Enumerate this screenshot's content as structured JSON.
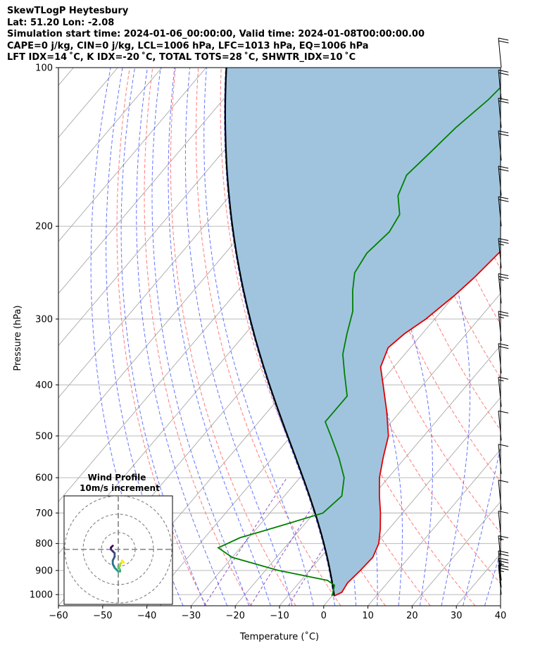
{
  "header": {
    "line1": "SkewTLogP Heytesbury",
    "line2": "Lat: 51.20   Lon: -2.08",
    "line3": "Simulation start time: 2024-01-06_00:00:00, Valid time: 2024-01-08T00:00:00.00",
    "line4": "CAPE=0 j/kg, CIN=0 j/kg, LCL=1006 hPa, LFC=1013 hPa, EQ=1006 hPa",
    "line5": "LFT IDX=14 ˚C, K IDX=-20 ˚C, TOTAL TOTS=28 ˚C, SHWTR_IDX=10 ˚C"
  },
  "colors": {
    "temperature": "#e00000",
    "dewpoint": "#008000",
    "parcel": "#000000",
    "cape_fill": "#a0c4de",
    "dry_adiabat": "#ff6b6b",
    "moist_adiabat": "#4a5cff",
    "isotherm": "#a8a8a8",
    "mixing_ratio": "#7b3fbf"
  },
  "chart_data": {
    "type": "line",
    "title": "SkewTLogP Heytesbury",
    "xlabel": "Temperature (˚C)",
    "ylabel": "Pressure (hPa)",
    "xlim": [
      -60,
      40
    ],
    "ylim": [
      1050,
      100
    ],
    "yscale": "log",
    "grid": true,
    "x_ticks": [
      -60,
      -50,
      -40,
      -30,
      -20,
      -10,
      0,
      10,
      20,
      30,
      40
    ],
    "y_ticks": [
      100,
      200,
      300,
      400,
      500,
      600,
      700,
      800,
      900,
      1000
    ],
    "series": [
      {
        "name": "temperature",
        "points": [
          {
            "p": 1006,
            "t": 0.5
          },
          {
            "p": 990,
            "t": 1.5
          },
          {
            "p": 950,
            "t": 1
          },
          {
            "p": 900,
            "t": 1.5
          },
          {
            "p": 850,
            "t": 1.8
          },
          {
            "p": 800,
            "t": 0.5
          },
          {
            "p": 750,
            "t": -2
          },
          {
            "p": 700,
            "t": -5
          },
          {
            "p": 650,
            "t": -8.5
          },
          {
            "p": 600,
            "t": -12
          },
          {
            "p": 550,
            "t": -15
          },
          {
            "p": 500,
            "t": -18
          },
          {
            "p": 450,
            "t": -23
          },
          {
            "p": 400,
            "t": -29
          },
          {
            "p": 370,
            "t": -33
          },
          {
            "p": 340,
            "t": -35
          },
          {
            "p": 320,
            "t": -34
          },
          {
            "p": 300,
            "t": -32
          },
          {
            "p": 270,
            "t": -30
          },
          {
            "p": 250,
            "t": -29
          },
          {
            "p": 220,
            "t": -28
          },
          {
            "p": 200,
            "t": -28
          },
          {
            "p": 180,
            "t": -29
          },
          {
            "p": 160,
            "t": -30
          },
          {
            "p": 140,
            "t": -30
          },
          {
            "p": 120,
            "t": -31
          },
          {
            "p": 100,
            "t": -33
          }
        ]
      },
      {
        "name": "dewpoint",
        "points": [
          {
            "p": 1006,
            "t": 0
          },
          {
            "p": 990,
            "t": -0.5
          },
          {
            "p": 960,
            "t": -1.5
          },
          {
            "p": 940,
            "t": -4
          },
          {
            "p": 900,
            "t": -17
          },
          {
            "p": 850,
            "t": -30
          },
          {
            "p": 815,
            "t": -35
          },
          {
            "p": 780,
            "t": -32
          },
          {
            "p": 740,
            "t": -25
          },
          {
            "p": 700,
            "t": -18
          },
          {
            "p": 650,
            "t": -17
          },
          {
            "p": 600,
            "t": -20
          },
          {
            "p": 550,
            "t": -25
          },
          {
            "p": 500,
            "t": -31
          },
          {
            "p": 470,
            "t": -35
          },
          {
            "p": 420,
            "t": -35
          },
          {
            "p": 380,
            "t": -40
          },
          {
            "p": 350,
            "t": -44
          },
          {
            "p": 320,
            "t": -47
          },
          {
            "p": 290,
            "t": -50
          },
          {
            "p": 265,
            "t": -54
          },
          {
            "p": 245,
            "t": -57
          },
          {
            "p": 225,
            "t": -58
          },
          {
            "p": 205,
            "t": -57
          },
          {
            "p": 190,
            "t": -58
          },
          {
            "p": 175,
            "t": -62
          },
          {
            "p": 160,
            "t": -64
          },
          {
            "p": 145,
            "t": -63
          },
          {
            "p": 130,
            "t": -62
          },
          {
            "p": 115,
            "t": -60
          },
          {
            "p": 100,
            "t": -59
          }
        ]
      }
    ],
    "parcel_start": {
      "p": 1006,
      "t": 0.5
    },
    "wind_barbs": [
      {
        "p": 100,
        "speed_kt": 20
      },
      {
        "p": 115,
        "speed_kt": 20
      },
      {
        "p": 130,
        "speed_kt": 20
      },
      {
        "p": 150,
        "speed_kt": 20
      },
      {
        "p": 175,
        "speed_kt": 20
      },
      {
        "p": 200,
        "speed_kt": 20
      },
      {
        "p": 240,
        "speed_kt": 25
      },
      {
        "p": 280,
        "speed_kt": 25
      },
      {
        "p": 330,
        "speed_kt": 25
      },
      {
        "p": 380,
        "speed_kt": 20
      },
      {
        "p": 440,
        "speed_kt": 15
      },
      {
        "p": 510,
        "speed_kt": 10
      },
      {
        "p": 590,
        "speed_kt": 10
      },
      {
        "p": 690,
        "speed_kt": 10
      },
      {
        "p": 790,
        "speed_kt": 10
      },
      {
        "p": 880,
        "speed_kt": 15
      },
      {
        "p": 940,
        "speed_kt": 20
      },
      {
        "p": 970,
        "speed_kt": 25
      },
      {
        "p": 1000,
        "speed_kt": 25
      }
    ],
    "wind_profile": {
      "title": "Wind Profile",
      "subtitle": "10m/s increment",
      "points": [
        {
          "u": -3,
          "v": 2
        },
        {
          "u": -4,
          "v": 1
        },
        {
          "u": -4,
          "v": 0
        },
        {
          "u": -3,
          "v": -1
        },
        {
          "u": -2,
          "v": -2
        },
        {
          "u": -2,
          "v": -4
        },
        {
          "u": -3,
          "v": -6
        },
        {
          "u": -3,
          "v": -8
        },
        {
          "u": -2,
          "v": -10
        },
        {
          "u": -1,
          "v": -11
        },
        {
          "u": 0,
          "v": -12
        },
        {
          "u": 1,
          "v": -12
        },
        {
          "u": 1,
          "v": -11
        },
        {
          "u": 0,
          "v": -10
        },
        {
          "u": 1,
          "v": -9
        },
        {
          "u": 1,
          "v": -8
        },
        {
          "u": 2,
          "v": -7
        },
        {
          "u": 3,
          "v": -7
        },
        {
          "u": 2,
          "v": -6
        }
      ]
    }
  }
}
